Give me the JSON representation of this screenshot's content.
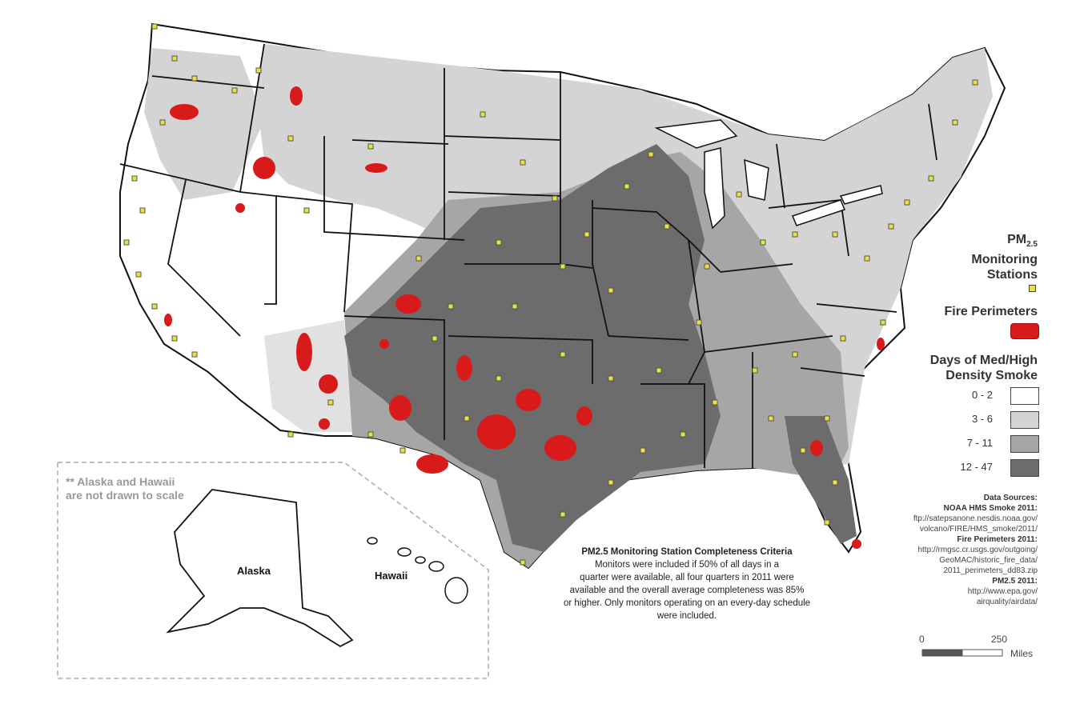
{
  "legend": {
    "stations_title_line1": "PM",
    "stations_title_sub": "2.5",
    "stations_title_line2": "Monitoring",
    "stations_title_line3": "Stations",
    "fire_title": "Fire Perimeters",
    "smoke_title_line1": "Days of Med/High",
    "smoke_title_line2": "Density Smoke",
    "classes": [
      {
        "label": "0 - 2",
        "color": "#ffffff"
      },
      {
        "label": "3 - 6",
        "color": "#d4d4d4"
      },
      {
        "label": "7 - 11",
        "color": "#a6a6a6"
      },
      {
        "label": "12 - 47",
        "color": "#6c6c6c"
      }
    ],
    "station_color": "#e8e43a",
    "fire_color": "#d91a1a"
  },
  "sources": {
    "title": "Data Sources:",
    "noaa_label": "NOAA HMS Smoke 2011:",
    "noaa_url_1": "ftp://satepsanone.nesdis.noaa.gov/",
    "noaa_url_2": "volcano/FIRE/HMS_smoke/2011/",
    "fire_label": "Fire Perimeters 2011:",
    "fire_url_1": "http://rmgsc.cr.usgs.gov/outgoing/",
    "fire_url_2": "GeoMAC/historic_fire_data/",
    "fire_url_3": "2011_perimeters_dd83.zip",
    "pm_label": "PM2.5 2011:",
    "pm_url_1": "http://www.epa.gov/",
    "pm_url_2": "airquality/airdata/"
  },
  "criteria": {
    "title": "PM2.5 Monitoring Station Completeness Criteria",
    "line1": "Monitors were included if 50% of all days in a",
    "line2": "quarter were available, all four quarters in 2011 were",
    "line3": "available and the overall average completeness was 85%",
    "line4": "or higher. Only monitors operating on an every-day schedule",
    "line5": "were included."
  },
  "inset": {
    "note_line1": "** Alaska and Hawaii",
    "note_line2": "are not drawn to scale",
    "alaska_label": "Alaska",
    "hawaii_label": "Hawaii"
  },
  "scale": {
    "start": "0",
    "end": "250",
    "unit": "Miles"
  }
}
